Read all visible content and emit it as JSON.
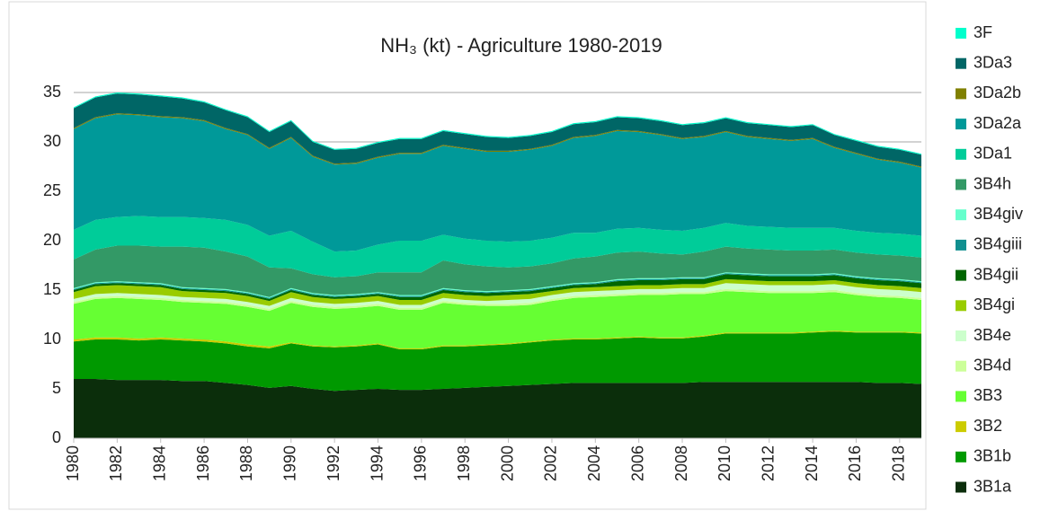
{
  "chart_data": {
    "type": "stacked_area",
    "title": "NH₃ (kt) - Agriculture 1980-2019",
    "x": [
      1980,
      1981,
      1982,
      1983,
      1984,
      1985,
      1986,
      1987,
      1988,
      1989,
      1990,
      1991,
      1992,
      1993,
      1994,
      1995,
      1996,
      1997,
      1998,
      1999,
      2000,
      2001,
      2002,
      2003,
      2004,
      2005,
      2006,
      2007,
      2008,
      2009,
      2010,
      2011,
      2012,
      2013,
      2014,
      2015,
      2016,
      2017,
      2018,
      2019
    ],
    "xlim": [
      1980,
      2019
    ],
    "xticks": [
      1980,
      1982,
      1984,
      1986,
      1988,
      1990,
      1992,
      1994,
      1996,
      1998,
      2000,
      2002,
      2004,
      2006,
      2008,
      2010,
      2012,
      2014,
      2016,
      2018
    ],
    "ylim": [
      0,
      35
    ],
    "yticks": [
      0,
      5,
      10,
      15,
      20,
      25,
      30,
      35
    ],
    "grid": true,
    "legend": "right",
    "series": [
      {
        "name": "3B1a",
        "color": "#0b2e0b",
        "values": [
          6.0,
          6.0,
          5.9,
          5.9,
          5.9,
          5.8,
          5.8,
          5.6,
          5.4,
          5.1,
          5.3,
          5.0,
          4.8,
          4.9,
          5.0,
          4.9,
          4.9,
          5.0,
          5.1,
          5.2,
          5.3,
          5.4,
          5.5,
          5.6,
          5.6,
          5.6,
          5.6,
          5.6,
          5.6,
          5.7,
          5.7,
          5.7,
          5.7,
          5.7,
          5.7,
          5.7,
          5.7,
          5.6,
          5.6,
          5.5
        ]
      },
      {
        "name": "3B1b",
        "color": "#009900",
        "values": [
          3.8,
          4.0,
          4.1,
          4.0,
          4.1,
          4.1,
          4.0,
          4.0,
          3.9,
          4.0,
          4.3,
          4.3,
          4.4,
          4.4,
          4.5,
          4.1,
          4.1,
          4.3,
          4.2,
          4.2,
          4.2,
          4.3,
          4.4,
          4.4,
          4.4,
          4.5,
          4.6,
          4.5,
          4.5,
          4.6,
          4.9,
          4.9,
          4.9,
          4.9,
          5.0,
          5.1,
          5.0,
          5.1,
          5.1,
          5.1
        ]
      },
      {
        "name": "3B2",
        "color": "#cccc00",
        "values": [
          0.2,
          0.2,
          0.2,
          0.2,
          0.2,
          0.2,
          0.2,
          0.2,
          0.2,
          0.2,
          0.1,
          0.1,
          0.1,
          0.1,
          0.1,
          0.1,
          0.1,
          0.1,
          0.1,
          0.1,
          0.1,
          0.1,
          0.1,
          0.1,
          0.1,
          0.1,
          0.1,
          0.1,
          0.1,
          0.1,
          0.1,
          0.1,
          0.1,
          0.1,
          0.1,
          0.1,
          0.1,
          0.1,
          0.1,
          0.1
        ]
      },
      {
        "name": "3B3",
        "color": "#66ff33",
        "values": [
          3.6,
          3.9,
          4.0,
          4.0,
          3.8,
          3.7,
          3.7,
          3.8,
          3.8,
          3.6,
          4.0,
          3.9,
          3.8,
          3.8,
          3.8,
          3.9,
          3.9,
          4.3,
          4.1,
          3.9,
          3.8,
          3.7,
          3.9,
          4.1,
          4.2,
          4.2,
          4.2,
          4.3,
          4.4,
          4.2,
          4.2,
          4.1,
          4.0,
          4.0,
          3.9,
          3.9,
          3.7,
          3.5,
          3.4,
          3.3
        ]
      },
      {
        "name": "3B4d",
        "color": "#ccff99",
        "values": [
          0.2,
          0.2,
          0.2,
          0.2,
          0.2,
          0.2,
          0.2,
          0.2,
          0.2,
          0.2,
          0.2,
          0.2,
          0.2,
          0.2,
          0.2,
          0.2,
          0.2,
          0.2,
          0.2,
          0.2,
          0.2,
          0.2,
          0.2,
          0.2,
          0.2,
          0.2,
          0.2,
          0.2,
          0.2,
          0.2,
          0.2,
          0.2,
          0.2,
          0.2,
          0.2,
          0.2,
          0.2,
          0.2,
          0.2,
          0.2
        ]
      },
      {
        "name": "3B4e",
        "color": "#ccffcc",
        "values": [
          0.3,
          0.3,
          0.3,
          0.3,
          0.3,
          0.3,
          0.3,
          0.3,
          0.3,
          0.3,
          0.3,
          0.3,
          0.3,
          0.3,
          0.3,
          0.3,
          0.3,
          0.3,
          0.3,
          0.3,
          0.4,
          0.4,
          0.4,
          0.4,
          0.4,
          0.4,
          0.4,
          0.4,
          0.4,
          0.4,
          0.6,
          0.6,
          0.6,
          0.6,
          0.6,
          0.6,
          0.6,
          0.6,
          0.6,
          0.6
        ]
      },
      {
        "name": "3B4gi",
        "color": "#99cc00",
        "values": [
          0.7,
          0.8,
          0.8,
          0.8,
          0.8,
          0.6,
          0.6,
          0.6,
          0.6,
          0.5,
          0.6,
          0.5,
          0.5,
          0.5,
          0.5,
          0.5,
          0.5,
          0.5,
          0.5,
          0.5,
          0.5,
          0.5,
          0.4,
          0.4,
          0.4,
          0.4,
          0.4,
          0.4,
          0.4,
          0.4,
          0.4,
          0.4,
          0.4,
          0.4,
          0.4,
          0.4,
          0.4,
          0.4,
          0.4,
          0.4
        ]
      },
      {
        "name": "3B4gii",
        "color": "#006600",
        "values": [
          0.2,
          0.2,
          0.2,
          0.2,
          0.2,
          0.2,
          0.2,
          0.2,
          0.2,
          0.2,
          0.2,
          0.2,
          0.2,
          0.2,
          0.2,
          0.3,
          0.3,
          0.3,
          0.3,
          0.3,
          0.3,
          0.3,
          0.3,
          0.3,
          0.3,
          0.5,
          0.5,
          0.5,
          0.5,
          0.5,
          0.5,
          0.5,
          0.5,
          0.5,
          0.5,
          0.5,
          0.5,
          0.5,
          0.5,
          0.5
        ]
      },
      {
        "name": "3B4giii",
        "color": "#108f8f",
        "values": [
          0.1,
          0.1,
          0.1,
          0.1,
          0.1,
          0.1,
          0.1,
          0.1,
          0.1,
          0.1,
          0.1,
          0.1,
          0.1,
          0.1,
          0.1,
          0.1,
          0.1,
          0.1,
          0.1,
          0.1,
          0.1,
          0.1,
          0.1,
          0.1,
          0.1,
          0.1,
          0.1,
          0.1,
          0.1,
          0.1,
          0.1,
          0.1,
          0.1,
          0.1,
          0.1,
          0.1,
          0.1,
          0.1,
          0.1,
          0.1
        ]
      },
      {
        "name": "3B4giv",
        "color": "#66ffcc",
        "values": [
          0.1,
          0.1,
          0.1,
          0.1,
          0.1,
          0.1,
          0.1,
          0.1,
          0.1,
          0.1,
          0.1,
          0.1,
          0.1,
          0.1,
          0.1,
          0.1,
          0.1,
          0.1,
          0.1,
          0.1,
          0.1,
          0.1,
          0.1,
          0.1,
          0.1,
          0.1,
          0.1,
          0.1,
          0.1,
          0.1,
          0.1,
          0.1,
          0.1,
          0.1,
          0.1,
          0.1,
          0.1,
          0.1,
          0.1,
          0.1
        ]
      },
      {
        "name": "3B4h",
        "color": "#339966",
        "values": [
          2.9,
          3.3,
          3.6,
          3.7,
          3.7,
          4.1,
          4.1,
          3.8,
          3.6,
          3.0,
          2.0,
          1.9,
          1.8,
          1.8,
          2.0,
          2.3,
          2.3,
          2.8,
          2.6,
          2.5,
          2.3,
          2.3,
          2.3,
          2.5,
          2.6,
          2.7,
          2.7,
          2.5,
          2.3,
          2.6,
          2.6,
          2.5,
          2.5,
          2.4,
          2.4,
          2.4,
          2.4,
          2.4,
          2.4,
          2.4
        ]
      },
      {
        "name": "3Da1",
        "color": "#00cc99",
        "values": [
          3.0,
          3.0,
          2.9,
          3.0,
          3.0,
          3.0,
          3.0,
          3.2,
          3.2,
          3.2,
          3.8,
          3.3,
          2.6,
          2.6,
          2.8,
          3.2,
          3.2,
          2.6,
          2.6,
          2.6,
          2.6,
          2.6,
          2.6,
          2.6,
          2.4,
          2.4,
          2.4,
          2.4,
          2.4,
          2.4,
          2.4,
          2.3,
          2.3,
          2.3,
          2.3,
          2.2,
          2.2,
          2.2,
          2.2,
          2.2
        ]
      },
      {
        "name": "3Da2a",
        "color": "#009999",
        "values": [
          10.2,
          10.3,
          10.4,
          10.2,
          10.1,
          10.0,
          9.8,
          9.2,
          9.1,
          8.8,
          9.4,
          8.6,
          8.8,
          8.8,
          8.8,
          8.8,
          8.8,
          9.0,
          9.1,
          9.0,
          9.1,
          9.2,
          9.3,
          9.6,
          9.8,
          9.9,
          9.7,
          9.6,
          9.3,
          9.2,
          9.2,
          9.0,
          8.9,
          8.8,
          9.0,
          8.1,
          7.8,
          7.4,
          7.2,
          6.9
        ]
      },
      {
        "name": "3Da2b",
        "color": "#808000",
        "values": [
          0.1,
          0.1,
          0.1,
          0.1,
          0.1,
          0.1,
          0.1,
          0.1,
          0.1,
          0.1,
          0.1,
          0.1,
          0.1,
          0.1,
          0.1,
          0.1,
          0.1,
          0.1,
          0.1,
          0.1,
          0.1,
          0.1,
          0.1,
          0.1,
          0.1,
          0.1,
          0.1,
          0.1,
          0.1,
          0.1,
          0.1,
          0.1,
          0.1,
          0.1,
          0.1,
          0.1,
          0.1,
          0.1,
          0.1,
          0.1
        ]
      },
      {
        "name": "3Da3",
        "color": "#006666",
        "values": [
          2.0,
          2.0,
          2.0,
          2.0,
          2.0,
          1.9,
          1.8,
          1.8,
          1.7,
          1.6,
          1.6,
          1.4,
          1.4,
          1.4,
          1.4,
          1.4,
          1.4,
          1.4,
          1.4,
          1.4,
          1.3,
          1.3,
          1.3,
          1.3,
          1.3,
          1.3,
          1.3,
          1.3,
          1.3,
          1.3,
          1.3,
          1.3,
          1.3,
          1.3,
          1.3,
          1.2,
          1.2,
          1.2,
          1.2,
          1.2
        ]
      },
      {
        "name": "3F",
        "color": "#00ffcc",
        "values": [
          0.1,
          0.1,
          0.1,
          0.1,
          0.1,
          0.1,
          0.1,
          0.1,
          0.1,
          0.1,
          0.1,
          0.1,
          0.1,
          0.1,
          0.1,
          0.1,
          0.1,
          0.1,
          0.1,
          0.1,
          0.1,
          0.1,
          0.1,
          0.1,
          0.1,
          0.1,
          0.1,
          0.1,
          0.1,
          0.1,
          0.1,
          0.1,
          0.1,
          0.1,
          0.1,
          0.1,
          0.1,
          0.1,
          0.1,
          0.1
        ]
      }
    ]
  }
}
